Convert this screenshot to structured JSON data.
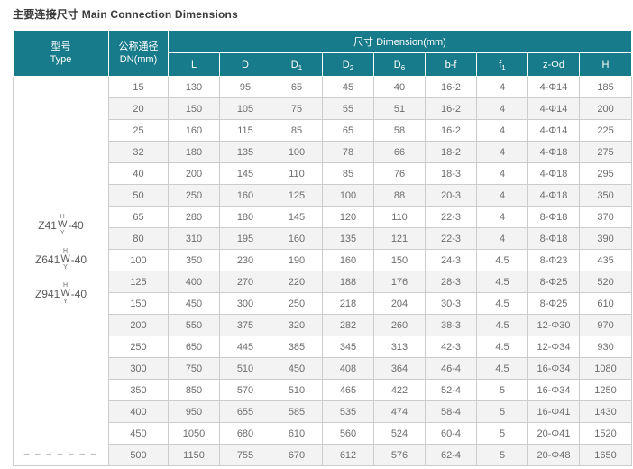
{
  "title": "主要连接尺寸 Main Connection Dimensions",
  "colors": {
    "header_teal": "#177b8b",
    "row_stripe": "#f3f3f3",
    "body_text": "#6d6d6d",
    "border_gray": "#cccccc",
    "title_text": "#3a3a3a"
  },
  "table": {
    "type_header": {
      "cn": "型号",
      "en": "Type"
    },
    "dn_header": {
      "cn": "公称通径",
      "en": "DN(mm)"
    },
    "dimension_header": "尺寸 Dimension(mm)",
    "columns": [
      {
        "base": "L"
      },
      {
        "base": "D"
      },
      {
        "base": "D",
        "sub": "1"
      },
      {
        "base": "D",
        "sub": "2"
      },
      {
        "base": "D",
        "sub": "6"
      },
      {
        "base": "b-f"
      },
      {
        "base": "f",
        "sub": "1"
      },
      {
        "base": "z-Φd"
      },
      {
        "base": "H"
      }
    ],
    "type_models": [
      {
        "prefix": "Z41",
        "stack_top": "H",
        "stack_mid": "W",
        "stack_bottom": "Y",
        "suffix": "-40"
      },
      {
        "prefix": "Z641",
        "stack_top": "H",
        "stack_mid": "W",
        "stack_bottom": "Y",
        "suffix": "-40"
      },
      {
        "prefix": "Z941",
        "stack_top": "H",
        "stack_mid": "W",
        "stack_bottom": "Y",
        "suffix": "-40"
      }
    ],
    "type_footer_dashes": "– – – – – – –",
    "rows": [
      [
        "15",
        "130",
        "95",
        "65",
        "45",
        "40",
        "16-2",
        "4",
        "4-Φ14",
        "185"
      ],
      [
        "20",
        "150",
        "105",
        "75",
        "55",
        "51",
        "16-2",
        "4",
        "4-Φ14",
        "200"
      ],
      [
        "25",
        "160",
        "115",
        "85",
        "65",
        "58",
        "16-2",
        "4",
        "4-Φ14",
        "225"
      ],
      [
        "32",
        "180",
        "135",
        "100",
        "78",
        "66",
        "18-2",
        "4",
        "4-Φ18",
        "275"
      ],
      [
        "40",
        "200",
        "145",
        "110",
        "85",
        "76",
        "18-3",
        "4",
        "4-Φ18",
        "295"
      ],
      [
        "50",
        "250",
        "160",
        "125",
        "100",
        "88",
        "20-3",
        "4",
        "4-Φ18",
        "350"
      ],
      [
        "65",
        "280",
        "180",
        "145",
        "120",
        "110",
        "22-3",
        "4",
        "8-Φ18",
        "370"
      ],
      [
        "80",
        "310",
        "195",
        "160",
        "135",
        "121",
        "22-3",
        "4",
        "8-Φ18",
        "390"
      ],
      [
        "100",
        "350",
        "230",
        "190",
        "160",
        "150",
        "24-3",
        "4.5",
        "8-Φ23",
        "435"
      ],
      [
        "125",
        "400",
        "270",
        "220",
        "188",
        "176",
        "28-3",
        "4.5",
        "8-Φ25",
        "520"
      ],
      [
        "150",
        "450",
        "300",
        "250",
        "218",
        "204",
        "30-3",
        "4.5",
        "8-Φ25",
        "610"
      ],
      [
        "200",
        "550",
        "375",
        "320",
        "282",
        "260",
        "38-3",
        "4.5",
        "12-Φ30",
        "970"
      ],
      [
        "250",
        "650",
        "445",
        "385",
        "345",
        "313",
        "42-3",
        "4.5",
        "12-Φ34",
        "930"
      ],
      [
        "300",
        "750",
        "510",
        "450",
        "408",
        "364",
        "46-4",
        "4.5",
        "16-Φ34",
        "1080"
      ],
      [
        "350",
        "850",
        "570",
        "510",
        "465",
        "422",
        "52-4",
        "5",
        "16-Φ34",
        "1250"
      ],
      [
        "400",
        "950",
        "655",
        "585",
        "535",
        "474",
        "58-4",
        "5",
        "16-Φ41",
        "1430"
      ],
      [
        "450",
        "1050",
        "680",
        "610",
        "560",
        "524",
        "60-4",
        "5",
        "20-Φ41",
        "1520"
      ],
      [
        "500",
        "1150",
        "755",
        "670",
        "612",
        "576",
        "62-4",
        "5",
        "20-Φ48",
        "1650"
      ]
    ]
  }
}
